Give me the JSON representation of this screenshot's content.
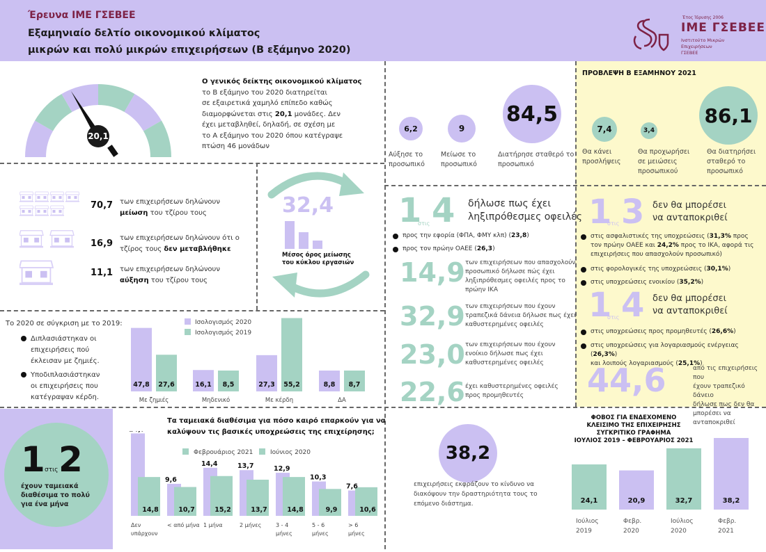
{
  "header": {
    "kicker": "Έρευνα ΙΜΕ ΓΣΕΒΕΕ",
    "title_line1": "Εξαμηνιαίο δελτίο οικονομικού κλίματος",
    "title_line2": "μικρών και πολύ μικρών επιχειρήσεων (Β εξάμηνο 2020)",
    "logo": {
      "founded": "Έτος Ίδρυσης 2006",
      "name": "ΙΜΕ ΓΣΕΒΕΕ",
      "subtitle_line1": "Ινστιτούτο Μικρών Επιχειρήσεων",
      "subtitle_line2": "ΓΣΕΒΕΕ"
    }
  },
  "colors": {
    "lavender": "#cbc0f2",
    "green": "#a4d3c3",
    "yellow": "#fdf9cc",
    "brand": "#7d2246"
  },
  "climate_index": {
    "value": "20,1",
    "text_bold": "Ο γενικός δείκτης οικονομικού κλίματος",
    "lines": [
      "το Β εξάμηνο του 2020 διατηρείται",
      "σε εξαιρετικά χαμηλό επίπεδο καθώς",
      "έχει μεταβληθεί, δηλαδή, σε σχέση με",
      "το Α εξάμηνο του 2020 όπου κατέγραψε",
      "πτώση 46 μονάδων"
    ],
    "line4_pre": "διαμορφώνεται στις ",
    "line4_bold": "20,1",
    "line4_post": " μονάδες. Δεν"
  },
  "staff": {
    "items": [
      {
        "value": "6,2",
        "label_l1": "Αύξησε το",
        "label_l2": "προσωπικό"
      },
      {
        "value": "9",
        "label_l1": "Μείωσε το",
        "label_l2": "προσωπικό"
      },
      {
        "value": "84,5",
        "label_l1": "Διατήρησε σταθερό το",
        "label_l2": "προσωπικό"
      }
    ]
  },
  "forecast": {
    "title": "ΠΡΟΒΛΕΨΗ Β ΕΞΑΜΗΝΟΥ 2021",
    "items": [
      {
        "value": "7,4",
        "label_l1": "Θα κάνει",
        "label_l2": "προσλήψεις",
        "label_l3": ""
      },
      {
        "value": "3,4",
        "label_l1": "Θα προχωρήσει",
        "label_l2": "σε μειώσεις",
        "label_l3": "προσωπικού"
      },
      {
        "value": "86,1",
        "label_l1": "Θα διατηρήσει",
        "label_l2": "σταθερό το",
        "label_l3": "προσωπικό"
      }
    ]
  },
  "turnover": {
    "rows": [
      {
        "value": "70,7",
        "l1": "των επιχειρήσεων δηλώνουν",
        "l2_bold": "μείωση",
        "l2_post": " του τζίρου τους",
        "l2_pre": ""
      },
      {
        "value": "16,9",
        "l1": "των επιχειρήσεων δηλώνουν ότι ο",
        "l2_pre": "τζίρος τους ",
        "l2_bold": "δεν μεταβλήθηκε",
        "l2_post": ""
      },
      {
        "value": "11,1",
        "l1": "των επιχειρήσεων δηλώνουν",
        "l2_bold": "αύξηση",
        "l2_post": "  του τζίρου τους",
        "l2_pre": ""
      }
    ],
    "avg_value": "32,4",
    "avg_label_l1": "Μέσος όρος μείωσης",
    "avg_label_l2": "του  κύκλου εργασιών"
  },
  "arrears": {
    "ratio_num": "1",
    "ratio_word": "στις",
    "ratio_den": "4",
    "headline_l1": "δήλωσε πως έχει",
    "headline_l2": "ληξιπρόθεσμες οφειλές",
    "bullets": [
      {
        "pre": "προς την εφορία (ΦΠΑ, ΦΜΥ κλπ) (",
        "bold": "23,8",
        "post": ")"
      },
      {
        "pre": "προς τον πρώην ΟΑΕΕ (",
        "bold": "26,3",
        "post": ")"
      }
    ],
    "stats": [
      {
        "value": "14,9",
        "lines": [
          "των επιχειρήσεων που απασχολούν",
          "προσωπικό δήλωσε πώς έχει",
          "ληξιπρόθεσμες οφειλές προς το",
          "πρώην ΙΚΑ"
        ]
      },
      {
        "value": "32,9",
        "lines": [
          "των επιχειρήσεων που έχουν",
          "τραπεζικά δάνεια δήλωσε πως έχει",
          "καθυστερημένες οφειλές"
        ]
      },
      {
        "value": "23,0",
        "lines": [
          "των επιχειρήσεων που έχουν",
          "ενοίκιο δήλωσε πως έχει",
          "καθυστερημένες οφειλές"
        ]
      },
      {
        "value": "22,6",
        "lines": [
          "έχει καθυστερημένες οφειλές",
          "προς προμηθευτές"
        ]
      }
    ]
  },
  "unable": {
    "block1": {
      "num": "1",
      "word": "στις",
      "den": "3",
      "l1": "δεν θα μπορέσει",
      "l2": "να ανταποκριθεί",
      "bullets": [
        {
          "l1_pre": "στις ασφαλιστικές της υποχρεώσεις (",
          "l1_bold": "31,3%",
          "l1_post": " προς",
          "l2_pre": "τον πρώην ΟΑΕΕ και ",
          "l2_bold": "24,2%",
          "l2_post": " προς το ΙΚΑ, αφορά τις",
          "l3": "επιχειρήσεις που απασχολούν προσωπικό)"
        },
        {
          "l1_pre": "στις φορολογικές της υποχρεώσεις (",
          "l1_bold": "30,1%",
          "l1_post": ")"
        },
        {
          "l1_pre": "στις υποχρεώσεις ενοικίου (",
          "l1_bold": "35,2%",
          "l1_post": ")"
        }
      ]
    },
    "block2": {
      "num": "1",
      "word": "στις",
      "den": "4",
      "l1": "δεν θα μπορέσει",
      "l2": "να ανταποκριθεί",
      "bullets": [
        {
          "l1_pre": "στις υποχρεώσεις προς προμηθευτές (",
          "l1_bold": "26,6%",
          "l1_post": ")"
        },
        {
          "l1_pre": "στις υποχρεώσεις για λογαριασμούς ενέργειας (",
          "l1_bold": "26,3%",
          "l1_post": ")",
          "l2_pre": "και λοιπούς λογαριασμούς (",
          "l2_bold": "25,1%",
          "l2_post": ")"
        }
      ]
    },
    "loan_value": "44,6",
    "loan_lines": [
      "από τις επιχειρήσεις που",
      "έχουν τραπεζικό δάνειο",
      "δήλωσε πως δεν θα",
      "μπορέσει να ανταποκριθεί"
    ]
  },
  "balance": {
    "intro": "Το 2020 σε σύγκριση με το 2019:",
    "bullets": [
      [
        "Διπλασιάστηκαν οι",
        "επιχειρήσεις πού",
        "έκλεισαν με ζημιές."
      ],
      [
        "Υποδιπλασιάστηκαν",
        "οι επιχειρήσεις που",
        "κατέγραψαν κέρδη."
      ]
    ]
  },
  "cash": {
    "ratio_num": "1",
    "ratio_word": "στις",
    "ratio_den": "2",
    "lines": [
      "έχουν ταμειακά",
      "διαθέσιμα το πολύ",
      "για ένα μήνα"
    ]
  },
  "fear": {
    "value": "38,2",
    "lines": [
      "επιχειρήσεις εκφράζουν το κίνδυνο να",
      "διακόψουν την δραστηριότητα τους το",
      "επόμενο διάστημα."
    ]
  },
  "chart_data": [
    {
      "type": "bar",
      "title": "",
      "categories": [
        "Με ζημιές",
        "Μηδενικό",
        "Με κέρδη",
        "ΔΑ"
      ],
      "series": [
        {
          "name": "Ισολογισμός 2020",
          "values": [
            47.8,
            16.1,
            27.3,
            8.8
          ],
          "labels": [
            "47,8",
            "16,1",
            "27,3",
            "8,8"
          ],
          "color": "#cbc0f2"
        },
        {
          "name": "Ισολογισμός 2019",
          "values": [
            27.6,
            8.5,
            55.2,
            8.7
          ],
          "labels": [
            "27,6",
            "8,5",
            "55,2",
            "8,7"
          ],
          "color": "#a4d3c3"
        }
      ],
      "ylim": [
        0,
        56
      ],
      "legend": "top-center"
    },
    {
      "type": "bar",
      "title_l1": "Τα ταμειακά διαθέσιμα για πόσο καιρό επαρκούν για να",
      "title_l2": "καλύψουν τις βασικές υποχρεώσεις της επιχείρησης;",
      "categories": [
        [
          "Δεν",
          "υπάρχουν"
        ],
        [
          "< από μήνα"
        ],
        [
          "1 μήνα"
        ],
        [
          "2 μήνες"
        ],
        [
          "3 - 4",
          "μήνες"
        ],
        [
          "5 - 6",
          "μήνες"
        ],
        [
          "> 6",
          "μήνες"
        ]
      ],
      "series": [
        {
          "name": "Φεβρουάριος 2021",
          "values": [
            24.7,
            9.6,
            14.4,
            13.7,
            12.9,
            10.3,
            7.6
          ],
          "labels": [
            "24,7",
            "9,6",
            "14,4",
            "13,7",
            "12,9",
            "10,3",
            "7,6"
          ],
          "color": "#cbc0f2"
        },
        {
          "name": "Ιούνιος 2020",
          "values": [
            14.8,
            10.7,
            15.2,
            13.7,
            14.8,
            9.9,
            10.6
          ],
          "labels": [
            "14,8",
            "10,7",
            "15,2",
            "13,7",
            "14,8",
            "9,9",
            "10,6"
          ],
          "color": "#a4d3c3"
        }
      ],
      "ylim": [
        0,
        25
      ],
      "legend": "top-center"
    },
    {
      "type": "bar",
      "title_lines": [
        "ΦΟΒΟΣ ΓΙΑ ΕΝΔΕΧΟΜΕΝΟ",
        "ΚΛΕΙΣΙΜΟ ΤΗΣ ΕΠΙΧΕΙΡΗΣΗΣ",
        "ΣΥΓΚΡΙΤΙΚΟ ΓΡΑΦΗΜΑ",
        "ΙΟΥΛΙΟΣ 2019 – ΦΕΒΡΟΥΑΡΙΟΣ 2021"
      ],
      "categories": [
        [
          "Ιούλιος",
          "2019"
        ],
        [
          "Φεβρ.",
          "2020"
        ],
        [
          "Ιούλιος",
          "2020"
        ],
        [
          "Φεβρ.",
          "2021"
        ]
      ],
      "values": [
        24.1,
        20.9,
        32.7,
        38.2
      ],
      "labels": [
        "24,1",
        "20,9",
        "32,7",
        "38,2"
      ],
      "colors": [
        "#a4d3c3",
        "#cbc0f2",
        "#a4d3c3",
        "#cbc0f2"
      ],
      "ylim": [
        0,
        38.2
      ]
    }
  ]
}
